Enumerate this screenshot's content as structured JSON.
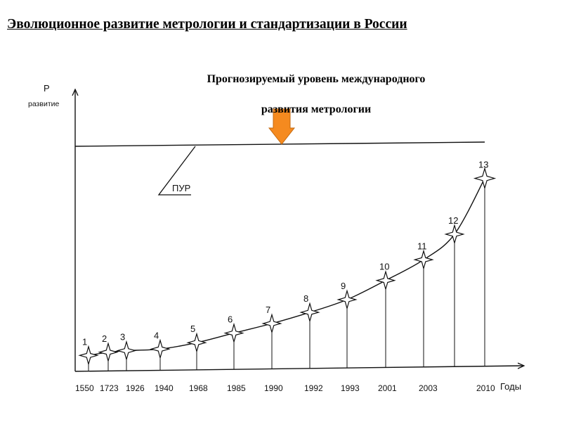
{
  "title": "Эволюционное развитие метрологии и стандартизации в России",
  "forecast_label": {
    "line1": "Прогнозируемый уровень международного",
    "line2": "развития метрологии"
  },
  "pur_label": "ПУР",
  "colors": {
    "arrow": "#f58a1f",
    "arrow_stroke": "#c46a10",
    "line": "#111111"
  },
  "chart_data": {
    "type": "line",
    "title": "",
    "ylabel_lines": [
      "P",
      "развитие"
    ],
    "xlabel": "Годы",
    "ylim": [
      0,
      13.5
    ],
    "forecast_level": 13.9,
    "points": [
      {
        "n": "1",
        "year": "1550",
        "level": 1.0
      },
      {
        "n": "2",
        "year": "1723",
        "level": 1.2
      },
      {
        "n": "3",
        "year": "1926",
        "level": 1.3
      },
      {
        "n": "4",
        "year": "1940",
        "level": 1.4
      },
      {
        "n": "5",
        "year": "1968",
        "level": 1.8
      },
      {
        "n": "6",
        "year": "1985",
        "level": 2.4
      },
      {
        "n": "7",
        "year": "1990",
        "level": 3.0
      },
      {
        "n": "8",
        "year": "1992",
        "level": 3.7
      },
      {
        "n": "9",
        "year": "1993",
        "level": 4.5
      },
      {
        "n": "10",
        "year": "2001",
        "level": 5.7
      },
      {
        "n": "11",
        "year": "2003",
        "level": 7.0
      },
      {
        "n": "12",
        "year": "2003",
        "level": 8.6
      },
      {
        "n": "13",
        "year": "2010",
        "level": 12.1
      }
    ]
  }
}
